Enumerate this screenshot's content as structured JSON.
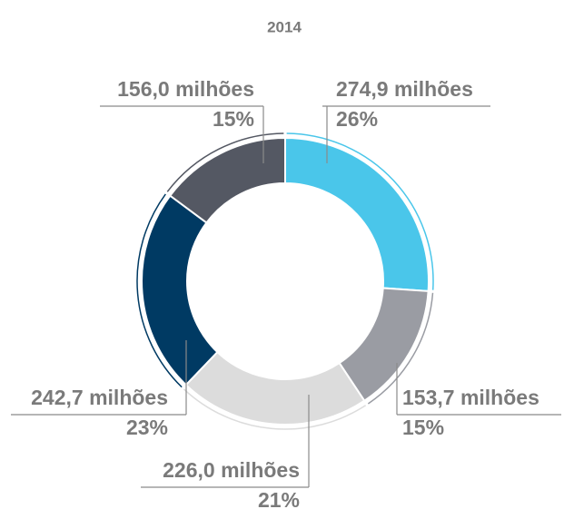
{
  "chart_data": {
    "type": "donut",
    "title": "2014",
    "categories": [
      null,
      null,
      null,
      null,
      null
    ],
    "values": [
      274.9,
      153.7,
      226.0,
      242.7,
      156.0
    ],
    "value_labels": [
      "274,9 milhões",
      "153,7 milhões",
      "226,0 milhões",
      "242,7 milhões",
      "156,0 milhões"
    ],
    "shares": [
      26,
      15,
      21,
      23,
      15
    ],
    "share_labels": [
      "26%",
      "15%",
      "21%",
      "23%",
      "15%"
    ],
    "colors": [
      "#4ac6ea",
      "#9a9ca3",
      "#dcdcdc",
      "#003a63",
      "#545863"
    ]
  }
}
